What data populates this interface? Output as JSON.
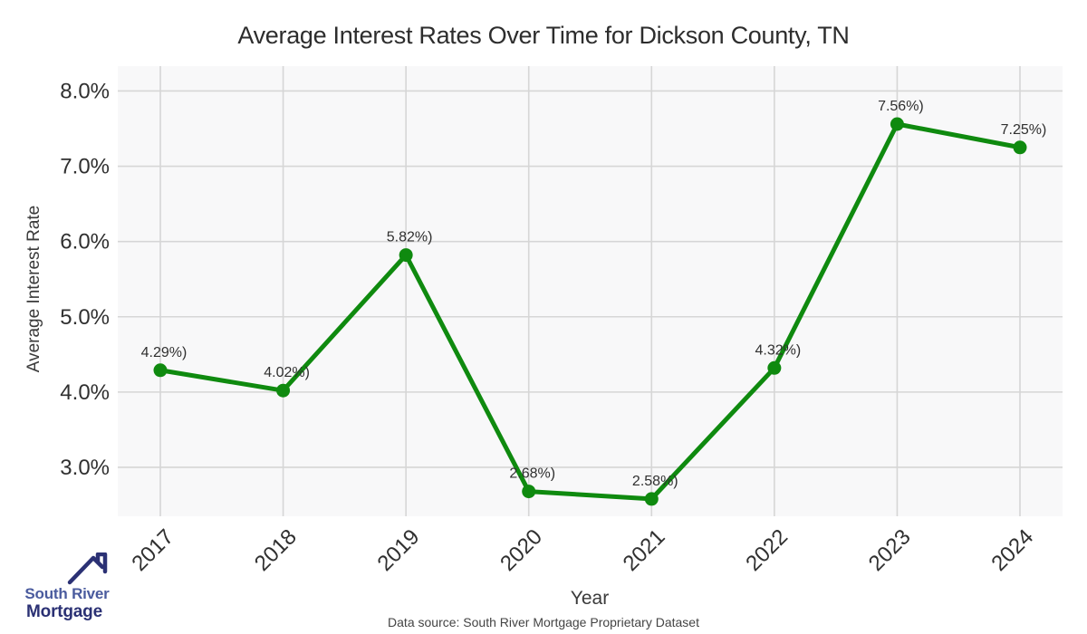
{
  "title": "Average Interest Rates Over Time for Dickson County, TN",
  "footer": "Data source: South River Mortgage Proprietary Dataset",
  "logo": {
    "line1": "South River",
    "line2": "Mortgage",
    "icon": "house-roof-icon",
    "color_light": "#4a5b9e",
    "color_dark": "#2b3174"
  },
  "chart_data": {
    "type": "line",
    "title": "Average Interest Rates Over Time for Dickson County, TN",
    "xlabel": "Year",
    "ylabel": "Average Interest Rate",
    "categories": [
      "2017",
      "2018",
      "2019",
      "2020",
      "2021",
      "2022",
      "2023",
      "2024"
    ],
    "values": [
      4.29,
      4.02,
      5.82,
      2.68,
      2.58,
      4.32,
      7.56,
      7.25
    ],
    "point_labels": [
      "4.29%)",
      "4.02%)",
      "5.82%)",
      "2.68%)",
      "2.58%)",
      "4.32%)",
      "7.56%)",
      "7.25%)"
    ],
    "y_ticks": [
      3.0,
      4.0,
      5.0,
      6.0,
      7.0,
      8.0
    ],
    "y_tick_labels": [
      "3.0%",
      "4.0%",
      "5.0%",
      "6.0%",
      "7.0%",
      "8.0%"
    ],
    "ylim": [
      2.35,
      8.33
    ],
    "x_tick_rotation": -45,
    "grid": true,
    "legend": "none",
    "line_color": "#0f8a0f",
    "marker_color": "#0f8a0f",
    "plot_bg": "#f8f8f9",
    "grid_color": "#d6d6d6",
    "tick_color": "#303030",
    "label_color": "#2f2f2f"
  }
}
